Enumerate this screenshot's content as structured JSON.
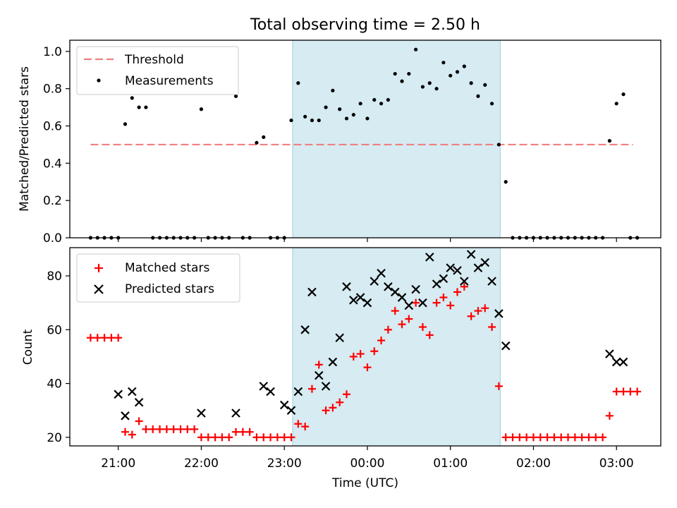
{
  "title": "Total observing time = 2.50 h",
  "chart_data": [
    {
      "type": "scatter",
      "ylabel": "Matched/Predicted stars",
      "xlim": [
        "20:25",
        "03:32"
      ],
      "ylim": [
        0,
        1.06
      ],
      "yticks": [
        "0.0",
        "0.2",
        "0.4",
        "0.6",
        "0.8",
        "1.0"
      ],
      "legend": {
        "placement": "top-left",
        "entries": [
          "Threshold",
          "Measurements"
        ]
      },
      "threshold": {
        "name": "Threshold",
        "value": 0.5,
        "x_start": "20:40",
        "x_end": "03:12",
        "color": "#f08080"
      },
      "shaded_interval": [
        "23:06",
        "01:36"
      ],
      "series": [
        {
          "name": "Measurements",
          "color": "#000000",
          "x": [
            "20:40",
            "20:45",
            "20:50",
            "20:55",
            "21:00",
            "21:05",
            "21:10",
            "21:15",
            "21:20",
            "21:25",
            "21:30",
            "21:35",
            "21:40",
            "21:45",
            "21:50",
            "21:55",
            "22:00",
            "22:05",
            "22:10",
            "22:15",
            "22:20",
            "22:25",
            "22:30",
            "22:35",
            "22:40",
            "22:45",
            "22:50",
            "22:55",
            "23:00",
            "23:05",
            "23:10",
            "23:15",
            "23:20",
            "23:25",
            "23:30",
            "23:35",
            "23:40",
            "23:45",
            "23:50",
            "23:55",
            "00:00",
            "00:05",
            "00:10",
            "00:15",
            "00:20",
            "00:25",
            "00:30",
            "00:35",
            "00:40",
            "00:45",
            "00:50",
            "00:55",
            "01:00",
            "01:05",
            "01:10",
            "01:15",
            "01:20",
            "01:25",
            "01:30",
            "01:35",
            "01:40",
            "01:45",
            "01:50",
            "01:55",
            "02:00",
            "02:05",
            "02:10",
            "02:15",
            "02:20",
            "02:25",
            "02:30",
            "02:35",
            "02:40",
            "02:45",
            "02:50",
            "02:55",
            "03:00",
            "03:05",
            "03:10",
            "03:15"
          ],
          "values": [
            0,
            0,
            0,
            0,
            0,
            0.61,
            0.75,
            0.7,
            0.7,
            0,
            0,
            0,
            0,
            0,
            0,
            0,
            0.69,
            0,
            0,
            0,
            0,
            0.76,
            0,
            0,
            0.51,
            0.54,
            0,
            0,
            0,
            0.63,
            0.83,
            0.65,
            0.63,
            0.63,
            0.7,
            0.79,
            0.69,
            0.64,
            0.66,
            0.72,
            0.64,
            0.74,
            0.72,
            0.74,
            0.88,
            0.84,
            0.88,
            1.01,
            0.81,
            0.83,
            0.8,
            0.94,
            0.87,
            0.89,
            0.92,
            0.83,
            0.76,
            0.82,
            0.72,
            0.5,
            0.3,
            0,
            0,
            0,
            0,
            0,
            0,
            0,
            0,
            0,
            0,
            0,
            0,
            0,
            0,
            0.52,
            0.72,
            0.77,
            0,
            0
          ]
        }
      ]
    },
    {
      "type": "scatter",
      "ylabel": "Count",
      "xlabel": "Time (UTC)",
      "xlim": [
        "20:25",
        "03:32"
      ],
      "ylim": [
        16.8,
        90.5
      ],
      "yticks": [
        "20",
        "40",
        "60",
        "80"
      ],
      "xticks": [
        "21:00",
        "22:00",
        "23:00",
        "00:00",
        "01:00",
        "02:00",
        "03:00"
      ],
      "legend": {
        "placement": "top-left",
        "entries": [
          "Matched stars",
          "Predicted stars"
        ]
      },
      "shaded_interval": [
        "23:06",
        "01:36"
      ],
      "series": [
        {
          "name": "Matched stars",
          "marker": "plus",
          "color": "#ff0000",
          "x": [
            "20:40",
            "20:45",
            "20:50",
            "20:55",
            "21:00",
            "21:05",
            "21:10",
            "21:15",
            "21:20",
            "21:25",
            "21:30",
            "21:35",
            "21:40",
            "21:45",
            "21:50",
            "21:55",
            "22:00",
            "22:05",
            "22:10",
            "22:15",
            "22:20",
            "22:25",
            "22:30",
            "22:35",
            "22:40",
            "22:45",
            "22:50",
            "22:55",
            "23:00",
            "23:05",
            "23:10",
            "23:15",
            "23:20",
            "23:25",
            "23:30",
            "23:35",
            "23:40",
            "23:45",
            "23:50",
            "23:55",
            "00:00",
            "00:05",
            "00:10",
            "00:15",
            "00:20",
            "00:25",
            "00:30",
            "00:35",
            "00:40",
            "00:45",
            "00:50",
            "00:55",
            "01:00",
            "01:05",
            "01:10",
            "01:15",
            "01:20",
            "01:25",
            "01:30",
            "01:35",
            "01:40",
            "01:45",
            "01:50",
            "01:55",
            "02:00",
            "02:05",
            "02:10",
            "02:15",
            "02:20",
            "02:25",
            "02:30",
            "02:35",
            "02:40",
            "02:45",
            "02:50",
            "02:55",
            "03:00",
            "03:05",
            "03:10",
            "03:15"
          ],
          "values": [
            57,
            57,
            57,
            57,
            57,
            22,
            21,
            26,
            23,
            23,
            23,
            23,
            23,
            23,
            23,
            23,
            20,
            20,
            20,
            20,
            20,
            22,
            22,
            22,
            20,
            20,
            20,
            20,
            20,
            20,
            25,
            24,
            38,
            47,
            30,
            31,
            33,
            36,
            50,
            51,
            46,
            52,
            56,
            60,
            67,
            62,
            64,
            70,
            61,
            58,
            70,
            72,
            69,
            74,
            76,
            65,
            67,
            68,
            61,
            39,
            20,
            20,
            20,
            20,
            20,
            20,
            20,
            20,
            20,
            20,
            20,
            20,
            20,
            20,
            20,
            28,
            37,
            37,
            37,
            37
          ]
        },
        {
          "name": "Predicted stars",
          "marker": "x",
          "color": "#000000",
          "x": [
            "21:00",
            "21:05",
            "21:10",
            "21:15",
            "22:00",
            "22:25",
            "22:45",
            "22:50",
            "23:00",
            "23:05",
            "23:10",
            "23:15",
            "23:20",
            "23:25",
            "23:30",
            "23:35",
            "23:40",
            "23:45",
            "23:50",
            "23:55",
            "00:00",
            "00:05",
            "00:10",
            "00:15",
            "00:20",
            "00:25",
            "00:30",
            "00:35",
            "00:40",
            "00:45",
            "00:50",
            "00:55",
            "01:00",
            "01:05",
            "01:10",
            "01:15",
            "01:20",
            "01:25",
            "01:30",
            "01:35",
            "01:40",
            "02:55",
            "03:00",
            "03:05"
          ],
          "values": [
            36,
            28,
            37,
            33,
            29,
            29,
            39,
            37,
            32,
            30,
            37,
            60,
            74,
            43,
            39,
            48,
            57,
            76,
            71,
            72,
            70,
            78,
            81,
            76,
            74,
            72,
            69,
            75,
            70,
            87,
            77,
            79,
            83,
            82,
            78,
            88,
            83,
            85,
            78,
            66,
            54,
            51,
            48,
            48
          ]
        }
      ]
    }
  ]
}
